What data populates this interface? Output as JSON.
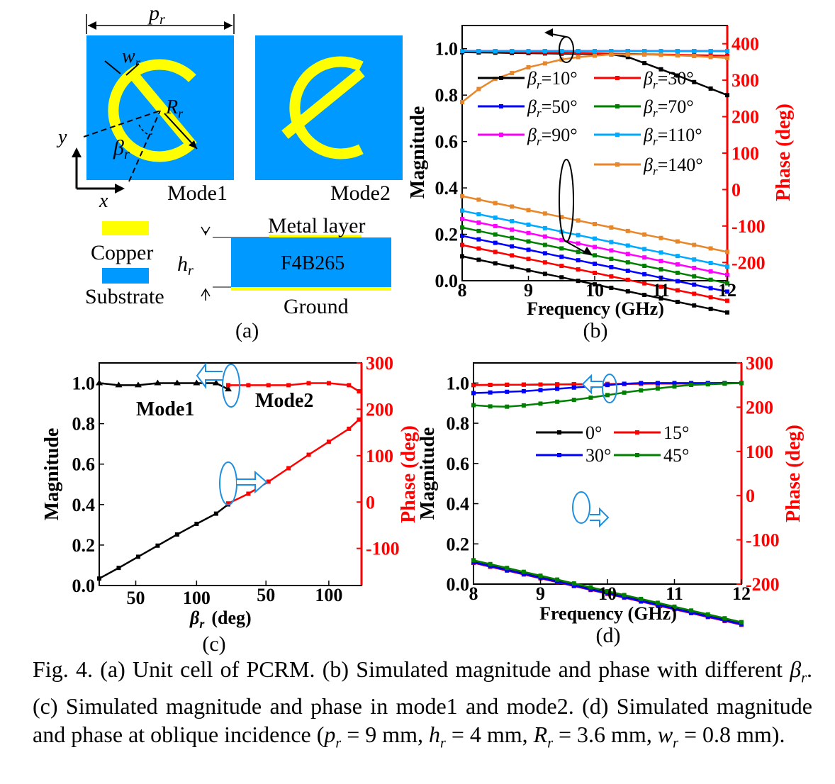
{
  "panel_a": {
    "pr_label": "p",
    "pr_sub": "r",
    "wr_label": "w",
    "wr_sub": "r",
    "Rr_label": "R",
    "Rr_sub": "r",
    "beta_label": "β",
    "beta_sub": "r",
    "y_axis": "y",
    "x_axis": "x",
    "mode1": "Mode1",
    "mode2": "Mode2",
    "legend_copper": "Copper",
    "legend_substrate": "Substrate",
    "hr_label": "h",
    "hr_sub": "r",
    "metal_layer": "Metal layer",
    "substrate_name": "F4B265",
    "ground": "Ground",
    "panel_label": "(a)",
    "colors": {
      "copper": "#ffff00",
      "substrate": "#0099ff"
    }
  },
  "panel_c_text": {
    "mode1": "Mode1",
    "mode2": "Mode2",
    "panel_label": "(c)"
  },
  "panel_b_text": {
    "panel_label": "(b)"
  },
  "panel_d_text": {
    "panel_label": "(d)"
  },
  "caption": {
    "s1": "Fig. 4. (a) Unit cell of PCRM. (b) Simulated magnitude and phase with different ",
    "beta": "β",
    "beta_sub": "r",
    "s2": ". (c) Simulated magnitude and phase in mode1 and mode2. (d) Simulated magnitude and phase at oblique incidence (",
    "p": "p",
    "p_sub": "r",
    "s3": " = 9 mm, ",
    "h": "h",
    "h_sub": "r",
    "s4": " = 4 mm, ",
    "R": "R",
    "R_sub": "r",
    "s5": " = 3.6 mm, ",
    "w": "w",
    "w_sub": "r",
    "s6": " = 0.8 mm)."
  },
  "chart_data": [
    {
      "id": "b",
      "type": "line",
      "xlabel": "Frequency (GHz)",
      "ylabel": "Magnitude",
      "y2label": "Phase (deg)",
      "xlim": [
        8,
        12
      ],
      "ylim": [
        0,
        1.1
      ],
      "y2lim": [
        -250,
        450
      ],
      "xticks": [
        "8",
        "9",
        "10",
        "11",
        "12"
      ],
      "yticks": [
        "0.0",
        "0.2",
        "0.4",
        "0.6",
        "0.8",
        "1.0"
      ],
      "y2ticks": [
        "-200",
        "-100",
        "0",
        "100",
        "200",
        "300",
        "400"
      ],
      "legend_prefix": "β",
      "legend_sub": "r",
      "series": [
        {
          "name": "=10°",
          "color": "#000000",
          "magnitude": {
            "x": [
              8,
              10.4,
              11.2,
              12
            ],
            "y": [
              0.985,
              0.975,
              0.89,
              0.8
            ]
          },
          "phase": {
            "x": [
              8,
              12
            ],
            "y": [
              -183,
              -337
            ]
          }
        },
        {
          "name": "=30°",
          "color": "#ff0000",
          "magnitude": {
            "x": [
              8,
              12
            ],
            "y": [
              0.99,
              0.97
            ]
          },
          "phase": {
            "x": [
              8,
              12
            ],
            "y": [
              -152,
              -305
            ]
          }
        },
        {
          "name": "=50°",
          "color": "#0000ff",
          "magnitude": {
            "x": [
              8,
              12
            ],
            "y": [
              0.99,
              0.99
            ]
          },
          "phase": {
            "x": [
              8,
              12
            ],
            "y": [
              -127,
              -280
            ]
          }
        },
        {
          "name": "=70°",
          "color": "#008000",
          "magnitude": {
            "x": [
              8,
              12
            ],
            "y": [
              0.99,
              0.99
            ]
          },
          "phase": {
            "x": [
              8,
              12
            ],
            "y": [
              -104,
              -257
            ]
          }
        },
        {
          "name": "=90°",
          "color": "#ff00ff",
          "magnitude": {
            "x": [
              8,
              12
            ],
            "y": [
              0.99,
              0.99
            ]
          },
          "phase": {
            "x": [
              8,
              12
            ],
            "y": [
              -81,
              -234
            ]
          }
        },
        {
          "name": "=110°",
          "color": "#00aaff",
          "magnitude": {
            "x": [
              8,
              12
            ],
            "y": [
              0.99,
              0.99
            ]
          },
          "phase": {
            "x": [
              8,
              12
            ],
            "y": [
              -58,
              -211
            ]
          }
        },
        {
          "name": "=140°",
          "color": "#e8862a",
          "magnitude": {
            "x": [
              8,
              8.4,
              9,
              9.6,
              10.2,
              10.8,
              11.4,
              12
            ],
            "y": [
              0.77,
              0.86,
              0.92,
              0.96,
              0.975,
              0.975,
              0.97,
              0.96
            ]
          },
          "phase": {
            "x": [
              8,
              12
            ],
            "y": [
              -18,
              -171
            ]
          }
        }
      ]
    },
    {
      "id": "c",
      "type": "line",
      "xlabel": "(deg)",
      "xlabel_symbol": "β",
      "xlabel_sub": "r",
      "ylabel": "Magnitude",
      "y2label": "Phase (deg)",
      "ylim": [
        0,
        1.1
      ],
      "y2lim": [
        -180,
        300
      ],
      "yticks": [
        "0.0",
        "0.2",
        "0.4",
        "0.6",
        "0.8",
        "1.0"
      ],
      "y2ticks": [
        "-100",
        "0",
        "100",
        "200",
        "300"
      ],
      "xticks_left": [
        "50",
        "100"
      ],
      "xticks_right": [
        "50",
        "100"
      ],
      "annotation_mode1": "Mode1",
      "annotation_mode2": "Mode2",
      "series": [
        {
          "name": "Mode1",
          "color": "#000000",
          "beta": [
            20,
            36,
            52,
            68,
            84,
            100,
            116,
            126
          ],
          "magnitude": [
            1.0,
            0.99,
            0.99,
            1.0,
            1.0,
            1.0,
            1.0,
            0.97
          ],
          "phase": [
            -165,
            -142,
            -118,
            -94,
            -70,
            -47,
            -25,
            -5
          ]
        },
        {
          "name": "Mode2",
          "color": "#ff0000",
          "beta": [
            20,
            36,
            52,
            68,
            84,
            100,
            116,
            124
          ],
          "magnitude": [
            0.99,
            0.99,
            0.99,
            0.99,
            1.0,
            1.0,
            0.99,
            0.96
          ],
          "phase": [
            -3,
            18,
            44,
            73,
            102,
            130,
            158,
            178
          ]
        }
      ]
    },
    {
      "id": "d",
      "type": "line",
      "xlabel": "Frequency (GHz)",
      "ylabel": "Magnitude",
      "y2label": "Phase (deg)",
      "xlim": [
        8,
        12
      ],
      "ylim": [
        0,
        1.1
      ],
      "y2lim": [
        -200,
        300
      ],
      "xticks": [
        "8",
        "9",
        "10",
        "11",
        "12"
      ],
      "yticks": [
        "0.0",
        "0.2",
        "0.4",
        "0.6",
        "0.8",
        "1.0"
      ],
      "y2ticks": [
        "-200",
        "-100",
        "0",
        "100",
        "200",
        "300"
      ],
      "series": [
        {
          "name": "0°",
          "color": "#000000",
          "magnitude": {
            "x": [
              8,
              12
            ],
            "y": [
              0.99,
              1.0
            ]
          },
          "phase": {
            "x": [
              8,
              12
            ],
            "y": [
              -150,
              -290
            ]
          }
        },
        {
          "name": "15°",
          "color": "#ff0000",
          "magnitude": {
            "x": [
              8,
              12
            ],
            "y": [
              0.99,
              1.0
            ]
          },
          "phase": {
            "x": [
              8,
              12
            ],
            "y": [
              -152,
              -292
            ]
          }
        },
        {
          "name": "30°",
          "color": "#0000ff",
          "magnitude": {
            "x": [
              8,
              8.8,
              9.6,
              10.4,
              12
            ],
            "y": [
              0.95,
              0.96,
              0.98,
              1.0,
              1.0
            ]
          },
          "phase": {
            "x": [
              8,
              12
            ],
            "y": [
              -151,
              -291
            ]
          }
        },
        {
          "name": "45°",
          "color": "#008000",
          "magnitude": {
            "x": [
              8,
              8.4,
              8.8,
              9.6,
              10.4,
              11.2,
              12
            ],
            "y": [
              0.89,
              0.88,
              0.89,
              0.92,
              0.96,
              0.99,
              1.0
            ]
          },
          "phase": {
            "x": [
              8,
              12
            ],
            "y": [
              -146,
              -286
            ]
          }
        }
      ]
    }
  ]
}
